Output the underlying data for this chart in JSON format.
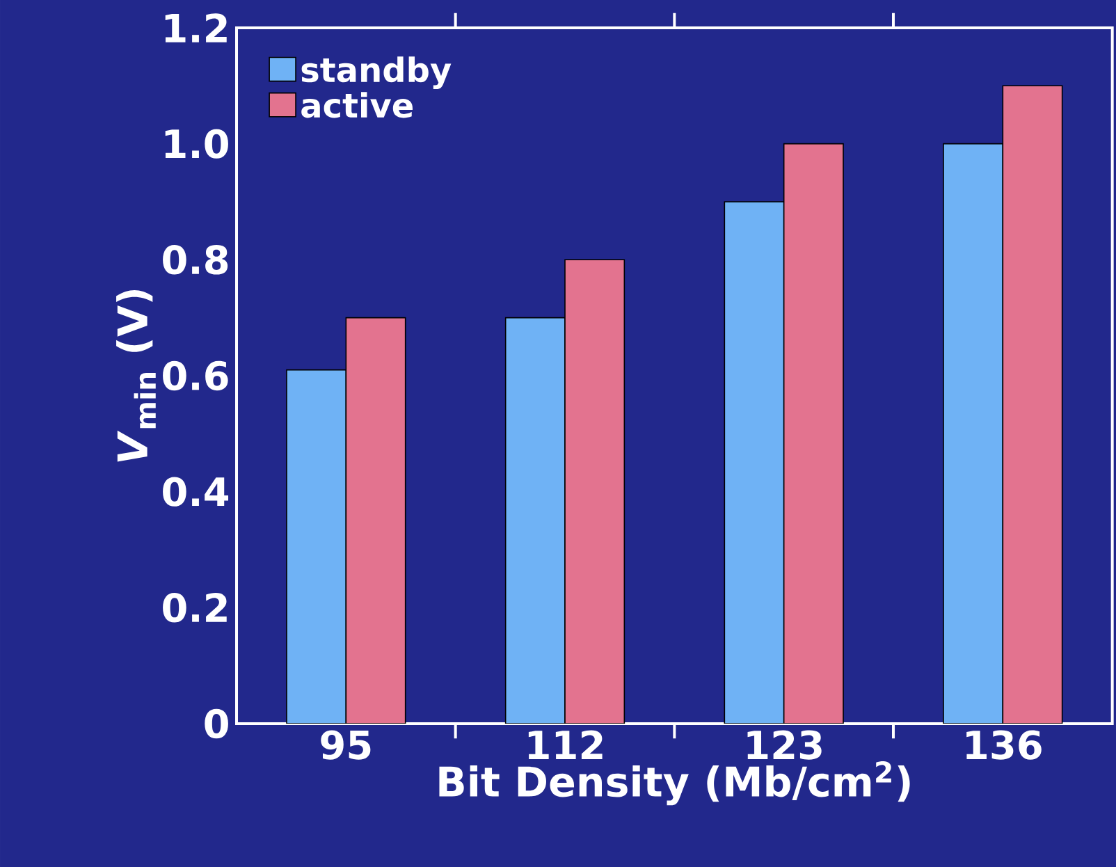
{
  "chart_data": {
    "type": "bar",
    "xlabel": "Bit Density (Mb/cm$^{2}$)",
    "ylabel": "*V*$_{min}$ (V)",
    "categories": [
      "95",
      "112",
      "123",
      "136"
    ],
    "series": [
      {
        "name": "standby",
        "color": "#6fb2f5",
        "values": [
          0.61,
          0.7,
          0.9,
          1.0
        ]
      },
      {
        "name": "active",
        "color": "#e3738f",
        "values": [
          0.7,
          0.8,
          1.0,
          1.1
        ]
      }
    ],
    "ylim": [
      0,
      1.2
    ],
    "yticks": [
      0,
      0.2,
      0.4,
      0.6,
      0.8,
      {
        "value": 1,
        "label": "1.0"
      },
      1.2
    ],
    "legend": "top left"
  }
}
